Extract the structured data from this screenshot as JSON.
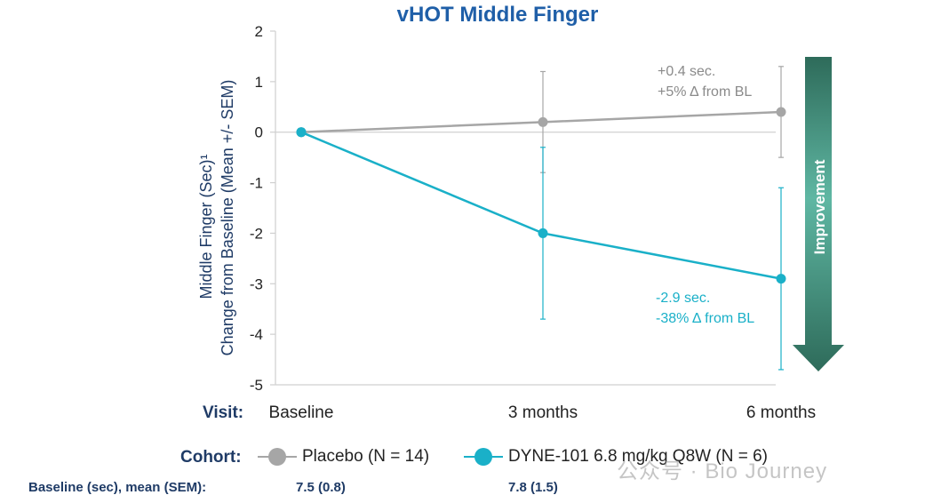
{
  "chart_data": {
    "type": "line",
    "title": "vHOT Middle Finger",
    "ylabel_line1": "Middle Finger (Sec)¹",
    "ylabel_line2": "Change from Baseline (Mean +/- SEM)",
    "x_axis_prefix": "Visit:",
    "categories": [
      "Baseline",
      "3 months",
      "6 months"
    ],
    "ylim": [
      -5,
      2
    ],
    "yticks": [
      "2",
      "1",
      "0",
      "-1",
      "-2",
      "-3",
      "-4",
      "-5"
    ],
    "series": [
      {
        "name": "Placebo (N = 14)",
        "color": "#a6a6a6",
        "values": [
          0,
          0.2,
          0.4
        ],
        "error_low": [
          0,
          -0.8,
          -0.5
        ],
        "error_high": [
          0,
          1.2,
          1.3
        ]
      },
      {
        "name": "DYNE-101 6.8 mg/kg Q8W (N = 6)",
        "color": "#1ab0c8",
        "values": [
          0,
          -2.0,
          -2.9
        ],
        "error_low": [
          0,
          -3.7,
          -4.7
        ],
        "error_high": [
          0,
          -0.3,
          -1.1
        ]
      }
    ],
    "annotations": {
      "placebo": [
        "+0.4 sec.",
        "+5% Δ from BL"
      ],
      "dyne": [
        "-2.9 sec.",
        "-38% Δ from BL"
      ]
    },
    "improvement_label": "Improvement"
  },
  "legend": {
    "cohort_label": "Cohort:",
    "placebo_label": "Placebo (N = 14)",
    "dyne_label": "DYNE-101 6.8 mg/kg Q8W (N = 6)"
  },
  "baseline_row": {
    "label": "Baseline (sec), mean (SEM):",
    "placebo": "7.5 (0.8)",
    "dyne": "7.8 (1.5)"
  },
  "watermark": "公众号 · Bio Journey"
}
